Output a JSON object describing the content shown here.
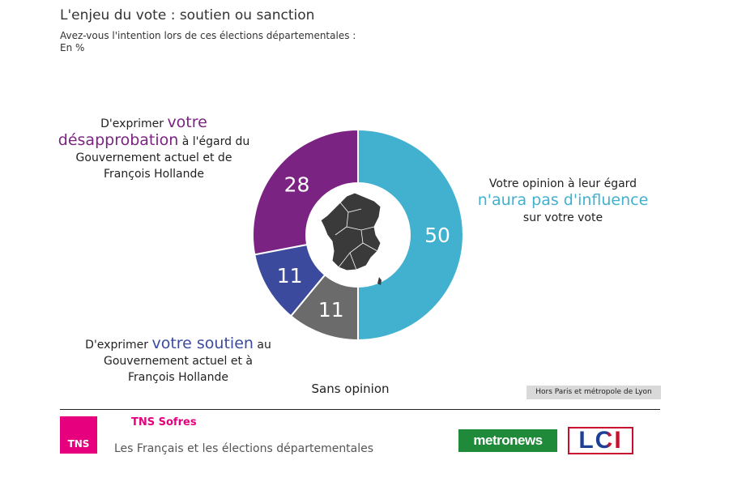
{
  "header": {
    "title": "L'enjeu du vote : soutien ou sanction",
    "subtitle_line1": "Avez-vous l'intention lors de ces élections départementales :",
    "subtitle_line2": "En %"
  },
  "labels": {
    "disapproval": {
      "pre": "D'exprimer ",
      "highlight1": "votre",
      "highlight2": "désapprobation",
      "post": " à l'égard du",
      "line3": "Gouvernement actuel et de",
      "line4": "François Hollande"
    },
    "no_influence": {
      "line1": "Votre opinion à leur égard",
      "highlight": "n'aura pas d'influence",
      "line3": "sur votre vote"
    },
    "support": {
      "pre": "D'exprimer ",
      "highlight": "votre soutien",
      "post": " au",
      "line2": "Gouvernement actuel et à",
      "line3": "François Hollande"
    },
    "no_opinion": "Sans opinion"
  },
  "note": "Hors Paris et métropole de Lyon",
  "footer": {
    "tns_logo_text": "TNS",
    "tns_name": "TNS Sofres",
    "study_title": "Les Français et les élections départementales",
    "metronews_logo": "metronews",
    "lci_logo": "LCI"
  },
  "colors": {
    "no_influence": "#41b1cf",
    "no_opinion": "#6b6b6b",
    "support": "#3c4a9e",
    "disapproval": "#7b2383",
    "brand_tns": "#e6007e"
  },
  "chart_data": {
    "type": "pie",
    "donut": true,
    "slices": [
      {
        "key": "no_influence",
        "value": 50,
        "color": "#41b1cf"
      },
      {
        "key": "no_opinion",
        "value": 11,
        "color": "#6b6b6b"
      },
      {
        "key": "support",
        "value": 11,
        "color": "#3c4a9e"
      },
      {
        "key": "disapproval",
        "value": 28,
        "color": "#7b2383"
      }
    ],
    "center_icon": "france-map-icon"
  }
}
